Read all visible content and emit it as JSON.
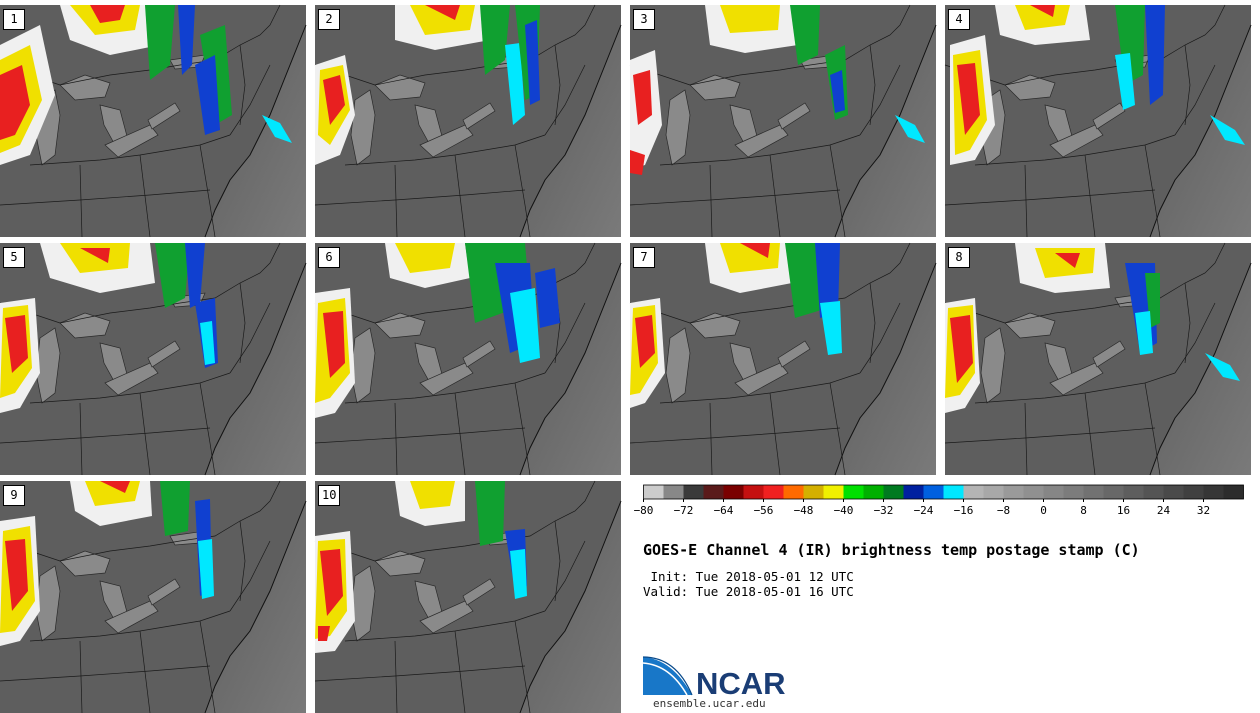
{
  "title": "GOES-E Channel 4 (IR) brightness temp postage stamp (C)",
  "init": " Init: Tue 2018-05-01 12 UTC",
  "valid": "Valid: Tue 2018-05-01 16 UTC",
  "logo": {
    "name": "NCAR",
    "url": "ensemble.ucar.edu"
  },
  "panels": [
    {
      "label": "1"
    },
    {
      "label": "2"
    },
    {
      "label": "3"
    },
    {
      "label": "4"
    },
    {
      "label": "5"
    },
    {
      "label": "6"
    },
    {
      "label": "7"
    },
    {
      "label": "8"
    },
    {
      "label": "9"
    },
    {
      "label": "10"
    }
  ],
  "colorbar": {
    "min": -80,
    "step": 4,
    "colors": [
      "#cccccc",
      "#888888",
      "#3a3a3a",
      "#5a1a1a",
      "#7a0000",
      "#c41010",
      "#f02020",
      "#ff6a00",
      "#d4b000",
      "#f0f000",
      "#00e000",
      "#00b000",
      "#007a20",
      "#0020a0",
      "#0060e0",
      "#00e8ff",
      "#b4b4b4",
      "#a8a8a8",
      "#9a9a9a",
      "#909090",
      "#868686",
      "#7c7c7c",
      "#727272",
      "#686868",
      "#5e5e5e",
      "#545454",
      "#4a4a4a",
      "#404040",
      "#363636",
      "#2c2c2c"
    ],
    "tick_values": [
      -80,
      -72,
      -64,
      -56,
      -48,
      -40,
      -32,
      -24,
      -16,
      -8,
      0,
      8,
      16,
      24,
      32
    ],
    "tick_labels": [
      "−80",
      "−72",
      "−64",
      "−56",
      "−48",
      "−40",
      "−32",
      "−24",
      "−16",
      "−8",
      "0",
      "8",
      "16",
      "24",
      "32"
    ]
  }
}
